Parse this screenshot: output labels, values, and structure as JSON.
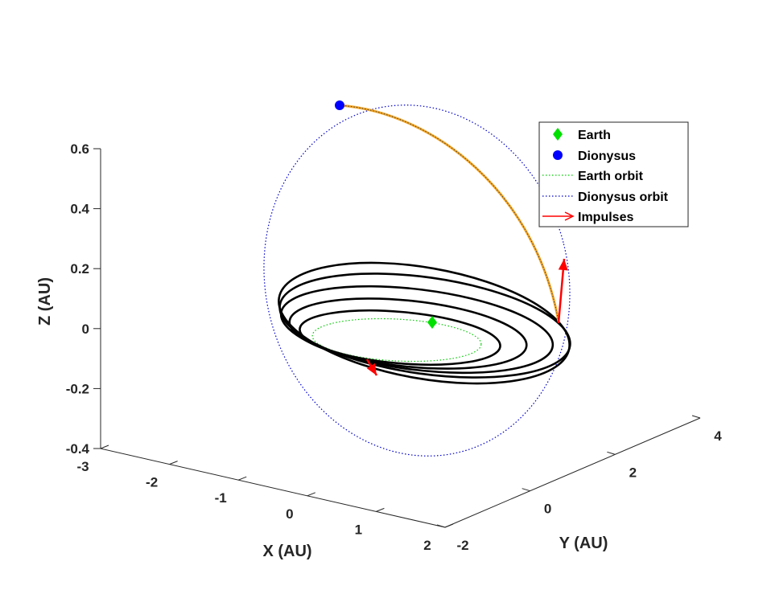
{
  "chart_data": {
    "type": "line",
    "title": "",
    "projection": "3d",
    "xlabel": "X (AU)",
    "ylabel": "Y (AU)",
    "zlabel": "Z (AU)",
    "xlim": [
      -3,
      2
    ],
    "ylim": [
      -2,
      4
    ],
    "zlim": [
      -0.4,
      0.6
    ],
    "x_ticks": [
      "-3",
      "-2",
      "-1",
      "0",
      "1",
      "2"
    ],
    "y_ticks": [
      "-2",
      "0",
      "2",
      "4"
    ],
    "z_ticks": [
      "-0.4",
      "-0.2",
      "0",
      "0.2",
      "0.4",
      "0.6"
    ],
    "grid": false,
    "legend": {
      "placement": "top-right",
      "entries": [
        {
          "label": "Earth",
          "color": "#00e000",
          "marker": "diamond"
        },
        {
          "label": "Dionysus",
          "color": "#0000ff",
          "marker": "circle"
        },
        {
          "label": "Earth orbit",
          "color": "#00cc00",
          "style": "dotted"
        },
        {
          "label": "Dionysus orbit",
          "color": "#0000cc",
          "style": "dotted"
        },
        {
          "label": "Impulses",
          "color": "#ff0000",
          "style": "arrow"
        }
      ]
    },
    "series": [
      {
        "name": "Earth orbit",
        "kind": "ellipse",
        "center": [
          0,
          0,
          0
        ],
        "semi_axes": [
          1.0,
          1.0
        ],
        "tilt_deg": 0,
        "color": "#00cc00"
      },
      {
        "name": "Dionysus orbit",
        "kind": "ellipse",
        "center": [
          -0.3,
          0.9,
          0.12
        ],
        "semi_axes": [
          2.2,
          2.2
        ],
        "tilt_deg": 13,
        "color": "#0000cc"
      },
      {
        "kind": "ellipse",
        "center": [
          -0.15,
          0.25,
          0.0
        ],
        "semi_axes": [
          1.3,
          1.3
        ],
        "tilt_deg": 3,
        "color": "#000000"
      },
      {
        "kind": "ellipse",
        "center": [
          -0.25,
          0.45,
          0.0
        ],
        "semi_axes": [
          1.55,
          1.55
        ],
        "tilt_deg": 3.5,
        "color": "#000000"
      },
      {
        "kind": "ellipse",
        "center": [
          -0.35,
          0.7,
          0.0
        ],
        "semi_axes": [
          1.85,
          1.85
        ],
        "tilt_deg": 4,
        "color": "#000000"
      },
      {
        "kind": "ellipse",
        "center": [
          -0.45,
          1.0,
          0.0
        ],
        "semi_axes": [
          2.2,
          2.2
        ],
        "tilt_deg": 4.5,
        "color": "#000000"
      },
      {
        "name": "Transfer arc",
        "kind": "arc",
        "color": "#f5a623"
      }
    ],
    "points": [
      {
        "name": "Earth",
        "xyz": [
          0.8,
          0.75,
          0.02
        ],
        "color": "#00e000",
        "marker": "diamond"
      },
      {
        "name": "Dionysus",
        "xyz": [
          -2.1,
          1.8,
          0.74
        ],
        "color": "#0000ff",
        "marker": "circle"
      }
    ],
    "impulses": [
      {
        "from": [
          0.9,
          2.9,
          0.02
        ],
        "to": [
          0.9,
          2.9,
          0.22
        ],
        "color": "#ff0000"
      },
      {
        "from": [
          -0.4,
          -0.1,
          -0.11
        ],
        "to": [
          -0.3,
          -0.05,
          -0.16
        ],
        "color": "#ff0000"
      }
    ]
  }
}
